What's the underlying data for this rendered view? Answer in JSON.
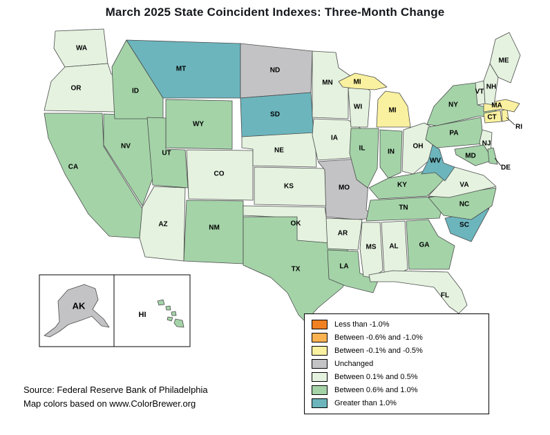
{
  "title": "March 2025 State Coincident Indexes: Three-Month Change",
  "source": {
    "line1": "Source: Federal Reserve Bank of Philadelphia",
    "line2": "Map colors based on www.ColorBrewer.org"
  },
  "legend": {
    "items": [
      {
        "id": "neg-large",
        "label": "Less than -1.0%",
        "color": "#F08122"
      },
      {
        "id": "neg-medium",
        "label": "Between -0.6% and -1.0%",
        "color": "#FBB351"
      },
      {
        "id": "neg-small",
        "label": "Between -0.1% and -0.5%",
        "color": "#FAF1A0"
      },
      {
        "id": "unchanged",
        "label": "Unchanged",
        "color": "#C3C3C5"
      },
      {
        "id": "pos-small",
        "label": "Between 0.1% and 0.5%",
        "color": "#E4F2DF"
      },
      {
        "id": "pos-medium",
        "label": "Between 0.6% and 1.0%",
        "color": "#A4D3A8"
      },
      {
        "id": "pos-large",
        "label": "Greater than 1.0%",
        "color": "#6CB5BD"
      }
    ]
  },
  "map": {
    "states": [
      {
        "abbr": "WA",
        "category": "pos-small"
      },
      {
        "abbr": "OR",
        "category": "pos-small"
      },
      {
        "abbr": "CA",
        "category": "pos-medium"
      },
      {
        "abbr": "NV",
        "category": "pos-medium"
      },
      {
        "abbr": "ID",
        "category": "pos-medium"
      },
      {
        "abbr": "MT",
        "category": "pos-large"
      },
      {
        "abbr": "WY",
        "category": "pos-medium"
      },
      {
        "abbr": "UT",
        "category": "pos-medium"
      },
      {
        "abbr": "CO",
        "category": "pos-small"
      },
      {
        "abbr": "AZ",
        "category": "pos-small"
      },
      {
        "abbr": "NM",
        "category": "pos-medium"
      },
      {
        "abbr": "ND",
        "category": "unchanged"
      },
      {
        "abbr": "SD",
        "category": "pos-large"
      },
      {
        "abbr": "NE",
        "category": "pos-small"
      },
      {
        "abbr": "KS",
        "category": "pos-small"
      },
      {
        "abbr": "OK",
        "category": "pos-small"
      },
      {
        "abbr": "TX",
        "category": "pos-medium"
      },
      {
        "abbr": "MN",
        "category": "pos-small"
      },
      {
        "abbr": "IA",
        "category": "pos-small"
      },
      {
        "abbr": "MO",
        "category": "unchanged"
      },
      {
        "abbr": "AR",
        "category": "pos-small"
      },
      {
        "abbr": "LA",
        "category": "pos-medium"
      },
      {
        "abbr": "WI",
        "category": "pos-small"
      },
      {
        "abbr": "IL",
        "category": "pos-medium"
      },
      {
        "abbr": "MI",
        "category": "neg-small"
      },
      {
        "abbr": "IN",
        "category": "pos-medium"
      },
      {
        "abbr": "OH",
        "category": "pos-small"
      },
      {
        "abbr": "KY",
        "category": "pos-medium"
      },
      {
        "abbr": "TN",
        "category": "pos-medium"
      },
      {
        "abbr": "MS",
        "category": "pos-small"
      },
      {
        "abbr": "AL",
        "category": "pos-small"
      },
      {
        "abbr": "GA",
        "category": "pos-medium"
      },
      {
        "abbr": "FL",
        "category": "pos-small"
      },
      {
        "abbr": "SC",
        "category": "pos-large"
      },
      {
        "abbr": "NC",
        "category": "pos-medium"
      },
      {
        "abbr": "VA",
        "category": "pos-small"
      },
      {
        "abbr": "WV",
        "category": "pos-large"
      },
      {
        "abbr": "MD",
        "category": "pos-medium"
      },
      {
        "abbr": "DE",
        "category": "pos-medium"
      },
      {
        "abbr": "PA",
        "category": "pos-medium"
      },
      {
        "abbr": "NY",
        "category": "pos-medium"
      },
      {
        "abbr": "NJ",
        "category": "pos-small"
      },
      {
        "abbr": "CT",
        "category": "neg-small"
      },
      {
        "abbr": "RI",
        "category": "neg-small"
      },
      {
        "abbr": "MA",
        "category": "neg-small"
      },
      {
        "abbr": "VT",
        "category": "pos-small"
      },
      {
        "abbr": "NH",
        "category": "pos-small"
      },
      {
        "abbr": "ME",
        "category": "pos-small"
      },
      {
        "abbr": "AK",
        "category": "unchanged"
      },
      {
        "abbr": "HI",
        "category": "pos-medium"
      }
    ]
  }
}
